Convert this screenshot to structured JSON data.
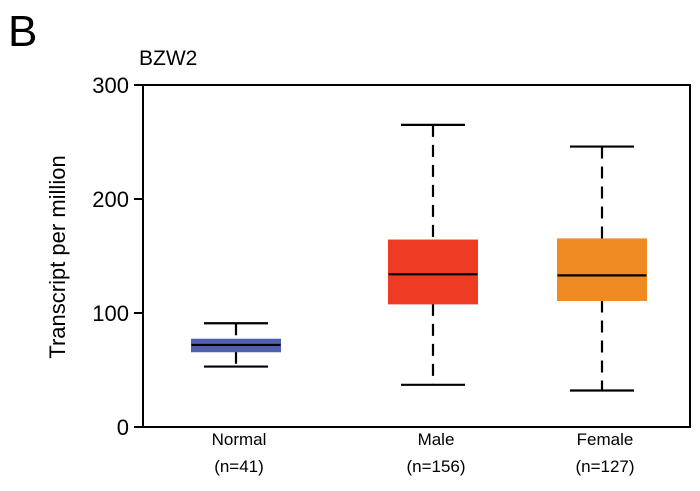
{
  "panel_label": "B",
  "chart_data": {
    "type": "box",
    "title": "BZW2",
    "xlabel": "",
    "ylabel": "Transcript per million",
    "ylim": [
      0,
      300
    ],
    "yticks": [
      0,
      100,
      200,
      300
    ],
    "grid": false,
    "categories": [
      {
        "name": "Normal",
        "n_label": "(n=41)",
        "color": "#5060b0",
        "whisker_low": 53,
        "q1": 66,
        "median": 72,
        "q3": 77,
        "whisker_high": 91
      },
      {
        "name": "Male",
        "n_label": "(n=156)",
        "color": "#ee3b24",
        "whisker_low": 37,
        "q1": 108,
        "median": 134,
        "q3": 164,
        "whisker_high": 265
      },
      {
        "name": "Female",
        "n_label": "(n=127)",
        "color": "#f08a22",
        "whisker_low": 32,
        "q1": 111,
        "median": 133,
        "q3": 165,
        "whisker_high": 246
      }
    ]
  }
}
